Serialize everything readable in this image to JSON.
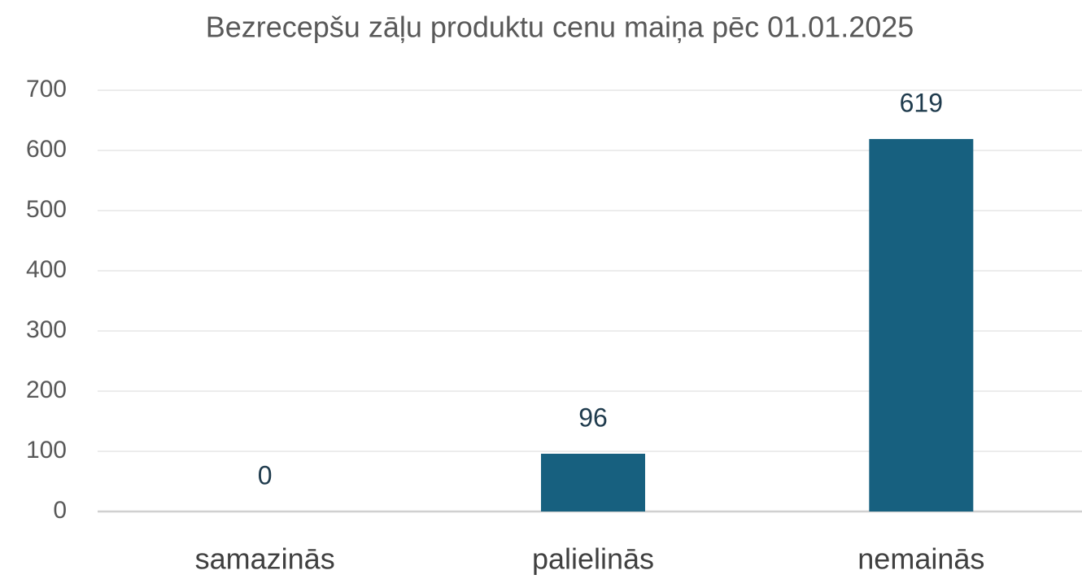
{
  "chart_data": {
    "type": "bar",
    "title": "Bezrecepšu zāļu produktu cenu maiņa pēc 01.01.2025",
    "categories": [
      "samazinās",
      "palielinās",
      "nemainās"
    ],
    "values": [
      0,
      96,
      619
    ],
    "color": "#17607f",
    "ylim": [
      0,
      700
    ],
    "yticks": [
      0,
      100,
      200,
      300,
      400,
      500,
      600,
      700
    ],
    "grid": true,
    "data_labels": true
  }
}
